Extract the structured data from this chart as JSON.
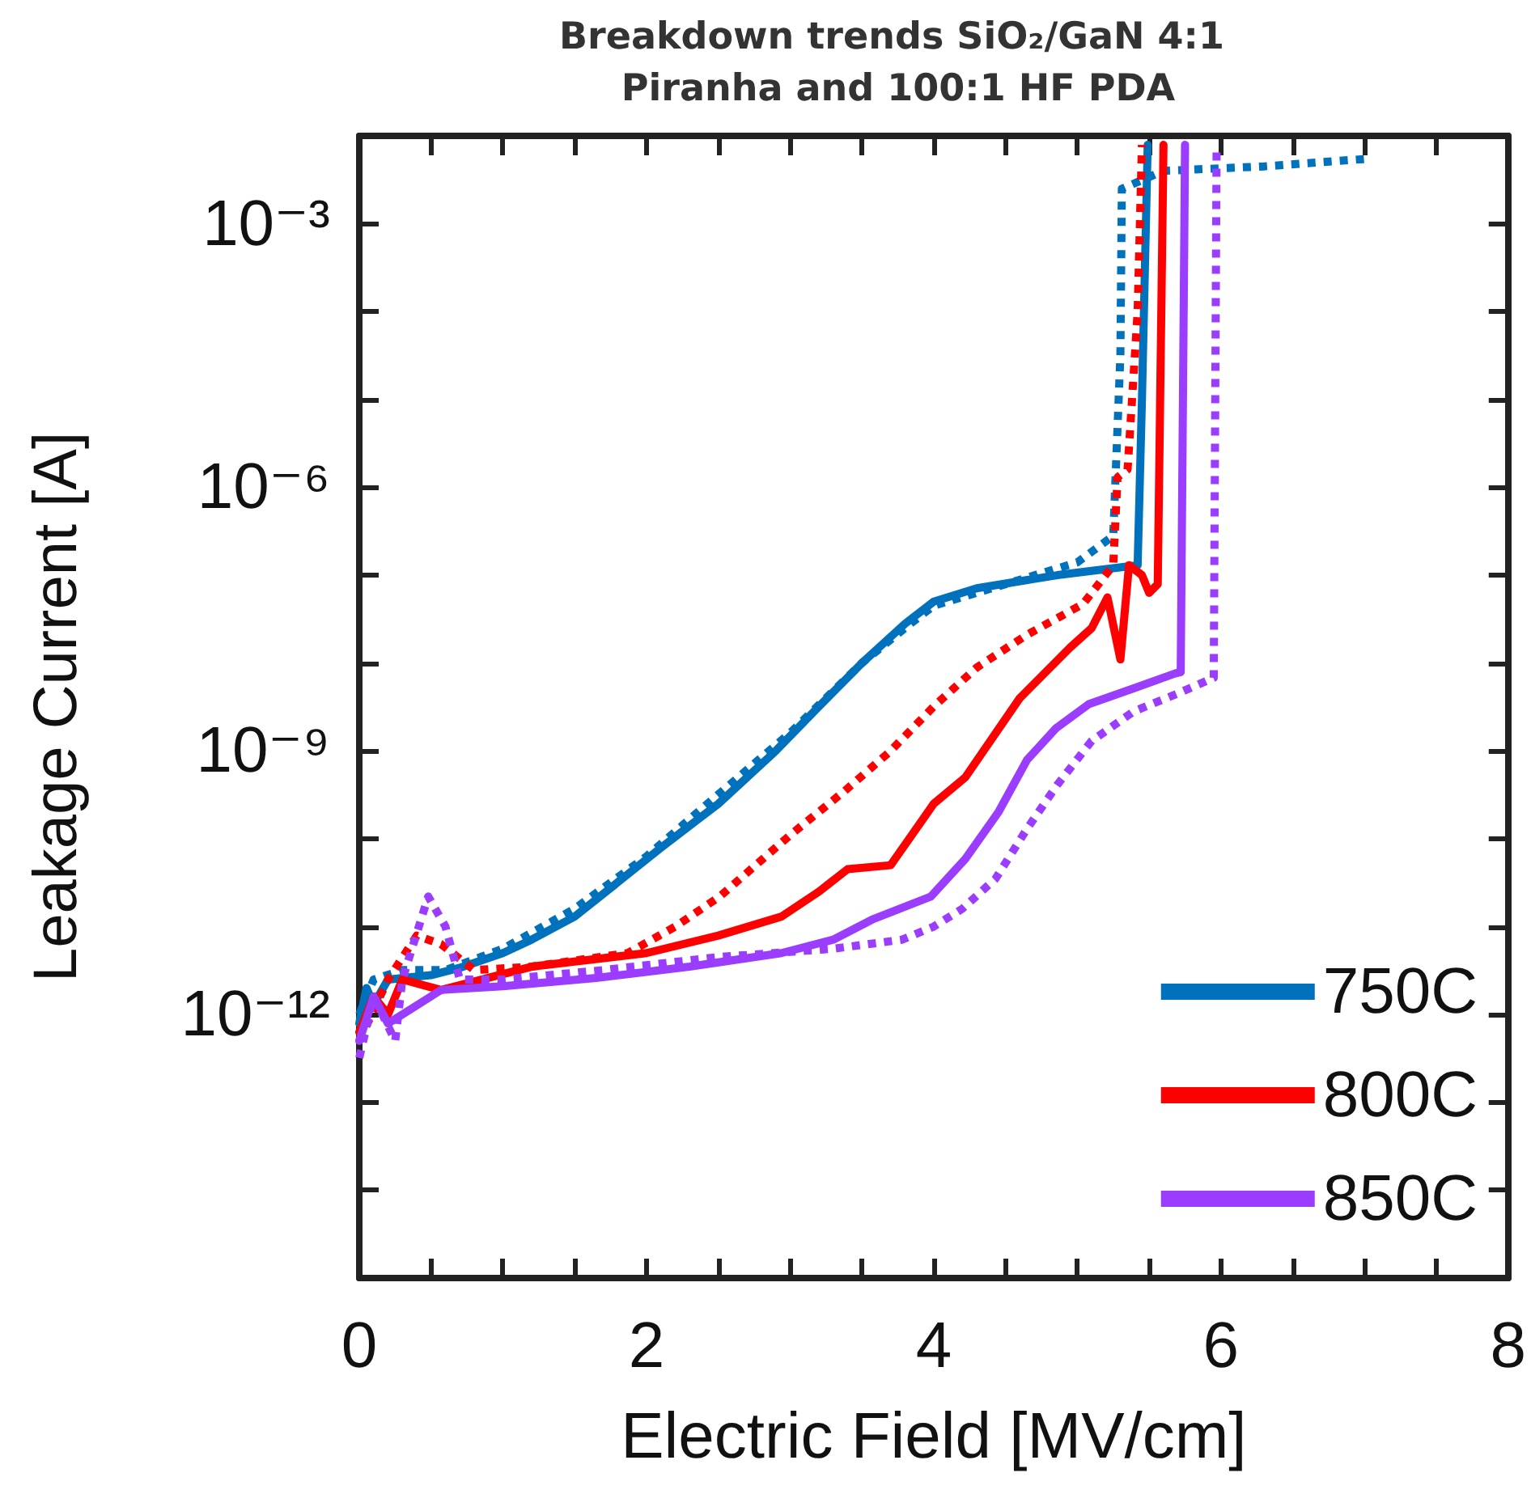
{
  "chart_data": {
    "type": "line",
    "title": "Breakdown trends SiO₂/GaN 4:1 Piranha and 100:1 HF PDA",
    "xlabel": "Electric Field [MV/cm]",
    "ylabel": "Leakage Current [A]",
    "xlim": [
      0,
      8
    ],
    "xticks": [
      0,
      {
        "value": 0.5,
        "label": null
      },
      {
        "value": 1,
        "label": null
      },
      {
        "value": 1.5,
        "label": null
      },
      2,
      {
        "value": 2.5,
        "label": null
      },
      {
        "value": 3,
        "label": null
      },
      {
        "value": 3.5,
        "label": null
      },
      4,
      {
        "value": 4.5,
        "label": null
      },
      {
        "value": 5,
        "label": null
      },
      {
        "value": 5.5,
        "label": null
      },
      6,
      {
        "value": 6.5,
        "label": null
      },
      {
        "value": 7,
        "label": null
      },
      {
        "value": 7.5,
        "label": null
      },
      8
    ],
    "ylim": [
      1e-15,
      0.01
    ],
    "yticks": [
      {
        "value": 1e-15,
        "label": null
      },
      {
        "value": 1e-14,
        "label": null
      },
      {
        "value": 1e-13,
        "label": null
      },
      {
        "value": 1e-12,
        "label": "10⁻¹²"
      },
      {
        "value": 1e-11,
        "label": null
      },
      {
        "value": 1e-10,
        "label": null
      },
      {
        "value": 1e-09,
        "label": "10⁻⁹"
      },
      {
        "value": 1e-08,
        "label": null
      },
      {
        "value": 1e-07,
        "label": null
      },
      {
        "value": 1e-06,
        "label": "10⁻⁶"
      },
      {
        "value": 1e-05,
        "label": null
      },
      {
        "value": 0.0001,
        "label": null
      },
      {
        "value": 0.001,
        "label": "10⁻³"
      },
      {
        "value": 0.01,
        "label": null
      }
    ],
    "log": "y",
    "grid": false,
    "legend": "bottom right",
    "marker": "none",
    "series": [
      {
        "name": "750C",
        "color": "#0072bd",
        "line_style": "solid",
        "x": [
          0,
          0.05,
          0.1,
          0.2,
          0.5,
          0.7,
          1.0,
          1.2,
          1.5,
          1.8,
          2.1,
          2.5,
          2.9,
          3.2,
          3.5,
          3.8,
          4.0,
          4.3,
          4.86,
          5.42,
          5.45,
          5.49
        ],
        "values": [
          7.9e-13,
          2e-12,
          1.3e-12,
          2.5e-12,
          2.8e-12,
          3.4e-12,
          5e-12,
          7.1e-12,
          1.3e-11,
          3.2e-11,
          7.9e-11,
          2.5e-10,
          1e-09,
          3.2e-09,
          1e-08,
          2.8e-08,
          5e-08,
          7.1e-08,
          1e-07,
          1.3e-07,
          1e-05,
          0.0079
        ]
      },
      {
        "color": "#0072bd",
        "line_style": "dotted",
        "x": [
          0,
          0.1,
          0.3,
          0.6,
          1.0,
          1.5,
          2.0,
          2.5,
          3.0,
          3.5,
          3.8,
          4.0,
          4.5,
          5.0,
          5.25,
          5.3,
          5.31,
          5.6,
          6.3,
          7.03
        ],
        "values": [
          1e-12,
          2.5e-12,
          3.2e-12,
          3.2e-12,
          5.6e-12,
          1.6e-11,
          6.3e-11,
          3.2e-10,
          1.6e-09,
          1e-08,
          2.5e-08,
          4.5e-08,
          7.9e-08,
          1.4e-07,
          2.8e-07,
          3.2e-05,
          0.0025,
          0.004,
          0.0045,
          0.0055
        ]
      },
      {
        "name": "800C",
        "color": "#ff0000",
        "line_style": "solid",
        "x": [
          0,
          0.1,
          0.2,
          0.3,
          0.57,
          1.2,
          2.0,
          2.5,
          2.94,
          3.2,
          3.4,
          3.7,
          4.0,
          4.22,
          4.6,
          4.95,
          5.1,
          5.21,
          5.3,
          5.36,
          5.45,
          5.5,
          5.56,
          5.6
        ],
        "values": [
          6.3e-13,
          1.6e-12,
          1e-12,
          2.5e-12,
          1.9e-12,
          3.5e-12,
          5e-12,
          7.9e-12,
          1.3e-11,
          2.5e-11,
          4.5e-11,
          5e-11,
          2.5e-10,
          5e-10,
          4e-09,
          1.5e-08,
          2.5e-08,
          5.6e-08,
          1.1e-08,
          1.3e-07,
          1e-07,
          6.3e-08,
          7.9e-08,
          0.0079
        ]
      },
      {
        "color": "#ff0000",
        "line_style": "dotted",
        "x": [
          0,
          0.2,
          0.4,
          0.57,
          0.8,
          1.2,
          1.87,
          2.2,
          2.51,
          3.0,
          3.38,
          3.7,
          4.0,
          4.3,
          4.65,
          5.04,
          5.25,
          5.28,
          5.35,
          5.42,
          5.45
        ],
        "values": [
          5e-13,
          2.5e-12,
          7.9e-12,
          6.3e-12,
          3.2e-12,
          3.5e-12,
          5e-12,
          1e-11,
          2.2e-11,
          1.1e-10,
          3.5e-10,
          1e-09,
          3.2e-09,
          8.9e-09,
          2.1e-08,
          4.7e-08,
          1.3e-07,
          1.3e-06,
          1.6e-06,
          0.0001,
          0.0079
        ]
      },
      {
        "name": "850C",
        "color": "#9b3dff",
        "line_style": "solid",
        "x": [
          0,
          0.1,
          0.2,
          0.57,
          1.0,
          1.65,
          2.3,
          2.94,
          3.3,
          3.57,
          3.98,
          4.22,
          4.45,
          4.65,
          4.85,
          5.08,
          5.4,
          5.68,
          5.72,
          5.75
        ],
        "values": [
          5e-13,
          1.6e-12,
          7.9e-13,
          1.9e-12,
          2.1e-12,
          2.6e-12,
          3.5e-12,
          5e-12,
          7.1e-12,
          1.2e-11,
          2.2e-11,
          5.9e-11,
          2e-10,
          7.9e-10,
          1.8e-09,
          3.4e-09,
          5.2e-09,
          7.6e-09,
          7.9e-09,
          0.0079
        ]
      },
      {
        "color": "#9b3dff",
        "line_style": "dotted",
        "x": [
          0,
          0.1,
          0.25,
          0.3,
          0.48,
          0.6,
          0.7,
          1.0,
          1.7,
          2.5,
          3.3,
          3.78,
          4.0,
          4.2,
          4.43,
          4.65,
          4.86,
          5.1,
          5.39,
          5.7,
          5.95,
          5.97
        ],
        "values": [
          3.2e-13,
          1.6e-12,
          5e-13,
          2.5e-12,
          2.2e-11,
          1e-11,
          2.5e-12,
          2.5e-12,
          3.2e-12,
          4.5e-12,
          5.6e-12,
          7.1e-12,
          1e-11,
          1.6e-11,
          3.5e-11,
          1.3e-10,
          4.1e-10,
          1.3e-09,
          2.8e-09,
          4.5e-09,
          6.8e-09,
          0.0079
        ]
      }
    ]
  }
}
